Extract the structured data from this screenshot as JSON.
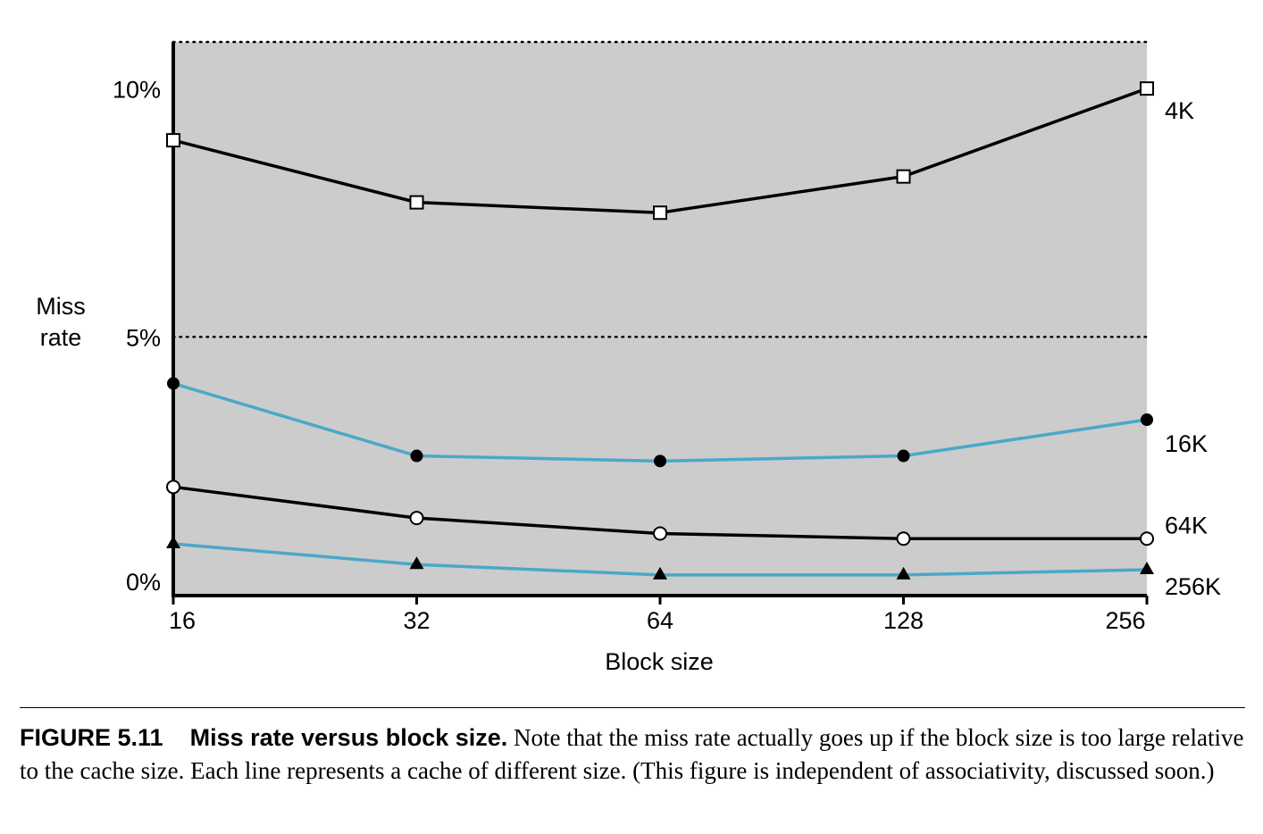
{
  "chart_data": {
    "type": "line",
    "xlabel": "Block size",
    "ylabel_lines": [
      "Miss",
      "rate"
    ],
    "x": [
      16,
      32,
      64,
      128,
      256
    ],
    "x_tick_labels": [
      "16",
      "32",
      "64",
      "128",
      "256"
    ],
    "x_scale": "log2",
    "ylim": [
      0,
      10.7
    ],
    "y_ticks": [
      0,
      5,
      10
    ],
    "y_tick_labels": [
      "0%",
      "5%",
      "10%"
    ],
    "grid": "dotted horizontal at 5% and top",
    "plot_background": "#cccccc",
    "series": [
      {
        "name": "4K",
        "values": [
          8.8,
          7.6,
          7.4,
          8.1,
          9.8
        ],
        "color": "#000000",
        "marker": "square-open"
      },
      {
        "name": "16K",
        "values": [
          4.1,
          2.7,
          2.6,
          2.7,
          3.4
        ],
        "color": "#4aa8c8",
        "marker": "circle-filled"
      },
      {
        "name": "64K",
        "values": [
          2.1,
          1.5,
          1.2,
          1.1,
          1.1
        ],
        "color": "#000000",
        "marker": "circle-open"
      },
      {
        "name": "256K",
        "values": [
          1.0,
          0.6,
          0.4,
          0.4,
          0.5
        ],
        "color": "#4aa8c8",
        "marker": "triangle-filled"
      }
    ]
  },
  "caption": {
    "label": "FIGURE 5.11",
    "title": "Miss rate versus block size.",
    "text": " Note that the miss rate actually goes up if the block size is too large relative to the cache size. Each line represents a cache of different size. (This figure is independent of associativity, discussed soon.)"
  }
}
